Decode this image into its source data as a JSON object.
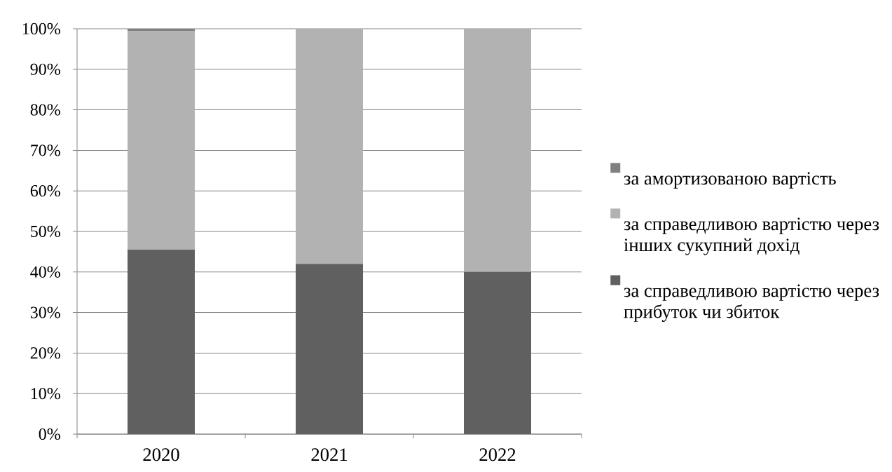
{
  "chart_data": {
    "type": "bar",
    "stacked": true,
    "categories": [
      "2020",
      "2021",
      "2022"
    ],
    "series": [
      {
        "name": "за справедливою вартістю через прибуток чи збиток",
        "color": "#606060",
        "values": [
          45.5,
          42,
          40
        ]
      },
      {
        "name": "за справедливою вартістю через інших сукупний дохід",
        "color": "#b2b2b2",
        "values": [
          53.9,
          58,
          60
        ]
      },
      {
        "name": "за амортизованою вартість",
        "color": "#808080",
        "values": [
          0.6,
          null,
          null
        ]
      }
    ],
    "ylim": [
      0,
      100
    ],
    "yticks": [
      {
        "value": 0,
        "label": "0%"
      },
      {
        "value": 10,
        "label": "10%"
      },
      {
        "value": 20,
        "label": "20%"
      },
      {
        "value": 30,
        "label": "30%"
      },
      {
        "value": 40,
        "label": "40%"
      },
      {
        "value": 50,
        "label": "50%"
      },
      {
        "value": 60,
        "label": "60%"
      },
      {
        "value": 70,
        "label": "70%"
      },
      {
        "value": 80,
        "label": "80%"
      },
      {
        "value": 90,
        "label": "90%"
      },
      {
        "value": 100,
        "label": "100%"
      }
    ],
    "grid": "y",
    "legend": "right"
  }
}
